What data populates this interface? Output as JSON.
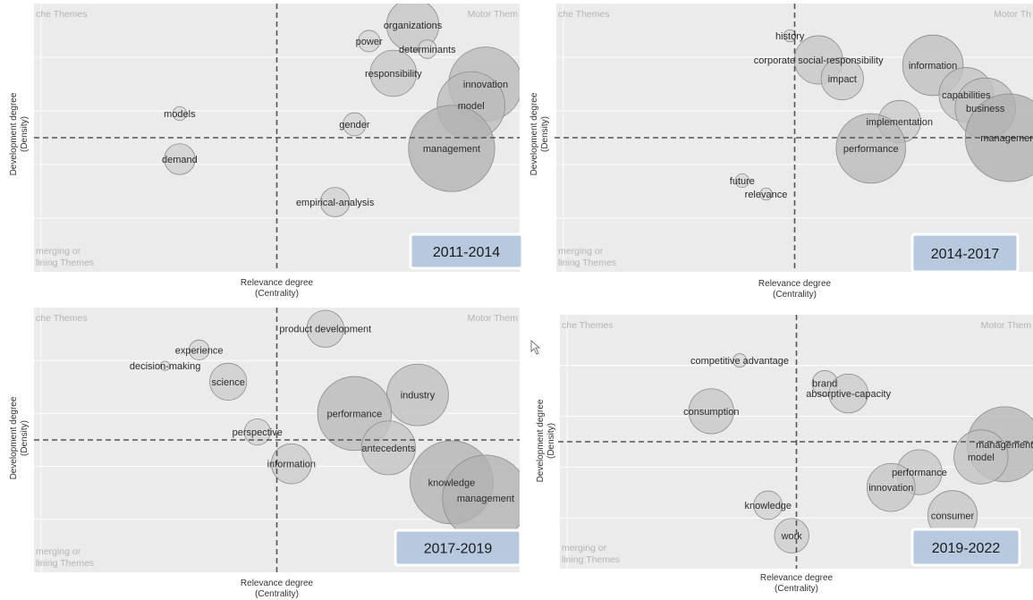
{
  "chart_data": [
    {
      "type": "scatter",
      "period": "2011-2014",
      "xlabel": [
        "Relevance degree",
        "(Centrality)"
      ],
      "ylabel": [
        "Development degree",
        "(Density)"
      ],
      "quadrant_labels": {
        "top_left": "che Themes",
        "top_right": "Motor Them",
        "bottom_left": [
          "merging or",
          "lining Themes"
        ]
      },
      "xlim": [
        0,
        100
      ],
      "ylim": [
        0,
        100
      ],
      "x_divider": 50,
      "y_divider": 50,
      "points": [
        {
          "label": "organizations",
          "x": 78,
          "y": 92,
          "size": 34
        },
        {
          "label": "power",
          "x": 69,
          "y": 86,
          "size": 14
        },
        {
          "label": "determinants",
          "x": 81,
          "y": 83,
          "size": 12
        },
        {
          "label": "responsibility",
          "x": 74,
          "y": 74,
          "size": 30
        },
        {
          "label": "innovation",
          "x": 93,
          "y": 70,
          "size": 48
        },
        {
          "label": "model",
          "x": 90,
          "y": 62,
          "size": 44
        },
        {
          "label": "models",
          "x": 30,
          "y": 59,
          "size": 9
        },
        {
          "label": "gender",
          "x": 66,
          "y": 55,
          "size": 15
        },
        {
          "label": "management",
          "x": 86,
          "y": 46,
          "size": 56
        },
        {
          "label": "demand",
          "x": 30,
          "y": 42,
          "size": 20
        },
        {
          "label": "empirical-analysis",
          "x": 62,
          "y": 26,
          "size": 19
        }
      ]
    },
    {
      "type": "scatter",
      "period": "2014-2017",
      "xlabel": [
        "Relevance degree",
        "(Centrality)"
      ],
      "ylabel": [
        "Development degree",
        "(Density)"
      ],
      "quadrant_labels": {
        "top_left": "che Themes",
        "top_right": "Motor Th",
        "bottom_left": [
          "merging or",
          "lining Themes"
        ]
      },
      "xlim": [
        0,
        100
      ],
      "ylim": [
        0,
        100
      ],
      "x_divider": 50,
      "y_divider": 50,
      "points": [
        {
          "label": "history",
          "x": 49,
          "y": 88,
          "size": 8
        },
        {
          "label": "corporate social-responsibility",
          "x": 55,
          "y": 79,
          "size": 32
        },
        {
          "label": "impact",
          "x": 60,
          "y": 72,
          "size": 28
        },
        {
          "label": "information",
          "x": 79,
          "y": 77,
          "size": 40
        },
        {
          "label": "capabilities",
          "x": 86,
          "y": 66,
          "size": 36
        },
        {
          "label": "business",
          "x": 90,
          "y": 61,
          "size": 40
        },
        {
          "label": "implementation",
          "x": 72,
          "y": 56,
          "size": 28
        },
        {
          "label": "management",
          "x": 95,
          "y": 50,
          "size": 58
        },
        {
          "label": "performance",
          "x": 66,
          "y": 46,
          "size": 46
        },
        {
          "label": "future",
          "x": 39,
          "y": 34,
          "size": 9
        },
        {
          "label": "relevance",
          "x": 44,
          "y": 29,
          "size": 8
        }
      ]
    },
    {
      "type": "scatter",
      "period": "2017-2019",
      "xlabel": [
        "Relevance degree",
        "(Centrality)"
      ],
      "ylabel": [
        "Development degree",
        "(Density)"
      ],
      "quadrant_labels": {
        "top_left": "che Themes",
        "top_right": "Motor Them",
        "bottom_left": [
          "merging or",
          "lining Themes"
        ]
      },
      "xlim": [
        0,
        100
      ],
      "ylim": [
        0,
        100
      ],
      "x_divider": 50,
      "y_divider": 50,
      "points": [
        {
          "label": "product development",
          "x": 60,
          "y": 92,
          "size": 24
        },
        {
          "label": "experience",
          "x": 34,
          "y": 84,
          "size": 13
        },
        {
          "label": "decision-making",
          "x": 27,
          "y": 78,
          "size": 6
        },
        {
          "label": "science",
          "x": 40,
          "y": 72,
          "size": 24
        },
        {
          "label": "industry",
          "x": 79,
          "y": 67,
          "size": 40
        },
        {
          "label": "performance",
          "x": 66,
          "y": 60,
          "size": 48
        },
        {
          "label": "perspective",
          "x": 46,
          "y": 53,
          "size": 17
        },
        {
          "label": "antecedents",
          "x": 73,
          "y": 47,
          "size": 35
        },
        {
          "label": "information",
          "x": 53,
          "y": 41,
          "size": 26
        },
        {
          "label": "knowledge",
          "x": 86,
          "y": 34,
          "size": 54
        },
        {
          "label": "management",
          "x": 93,
          "y": 28,
          "size": 56
        }
      ]
    },
    {
      "type": "scatter",
      "period": "2019-2022",
      "xlabel": [
        "Relevance degree",
        "(Centrality)"
      ],
      "ylabel": [
        "Development degree",
        "(Density)"
      ],
      "quadrant_labels": {
        "top_left": "che Themes",
        "top_right": "Motor Them",
        "bottom_left": [
          "merging or",
          "lining Themes"
        ]
      },
      "xlim": [
        0,
        100
      ],
      "ylim": [
        0,
        100
      ],
      "x_divider": 50,
      "y_divider": 50,
      "points": [
        {
          "label": "competitive advantage",
          "x": 38,
          "y": 82,
          "size": 9
        },
        {
          "label": "brand",
          "x": 56,
          "y": 73,
          "size": 17
        },
        {
          "label": "absorptive-capacity",
          "x": 61,
          "y": 69,
          "size": 26
        },
        {
          "label": "consumption",
          "x": 32,
          "y": 62,
          "size": 30
        },
        {
          "label": "management",
          "x": 94,
          "y": 49,
          "size": 50
        },
        {
          "label": "model",
          "x": 89,
          "y": 44,
          "size": 36
        },
        {
          "label": "performance",
          "x": 76,
          "y": 38,
          "size": 30
        },
        {
          "label": "innovation",
          "x": 70,
          "y": 32,
          "size": 32
        },
        {
          "label": "knowledge",
          "x": 44,
          "y": 25,
          "size": 19
        },
        {
          "label": "consumer",
          "x": 83,
          "y": 21,
          "size": 33
        },
        {
          "label": "work",
          "x": 49,
          "y": 13,
          "size": 23
        }
      ]
    }
  ]
}
